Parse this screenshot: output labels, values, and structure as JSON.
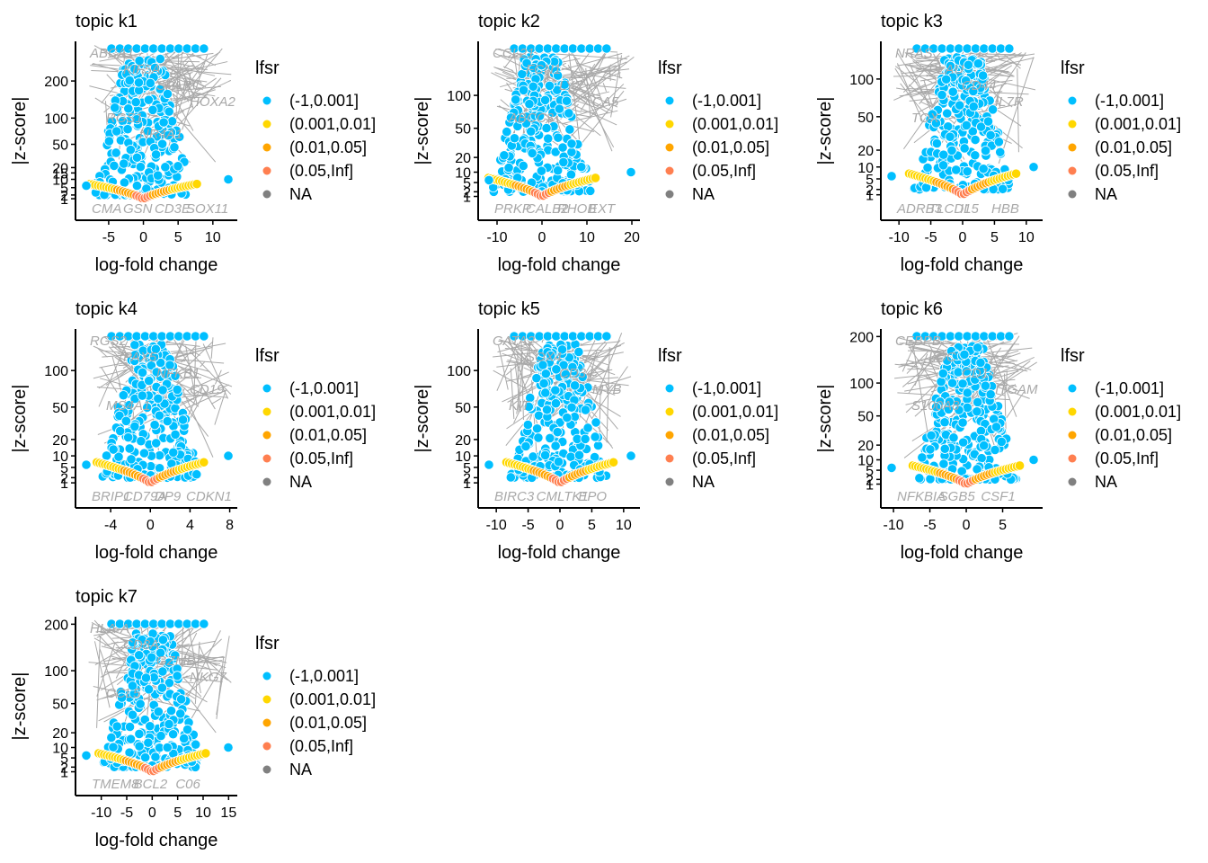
{
  "legend": {
    "title": "lfsr",
    "entries": [
      {
        "label": "(-1,0.001]",
        "color": "#00BFFF"
      },
      {
        "label": "(0.001,0.01]",
        "color": "#FFD700"
      },
      {
        "label": "(0.01,0.05]",
        "color": "#FFA500"
      },
      {
        "label": "(0.05,Inf]",
        "color": "#FF7F50"
      },
      {
        "label": "NA",
        "color": "#808080"
      }
    ]
  },
  "label_color": "#A9A9A9",
  "chart_data": [
    {
      "type": "scatter",
      "title": "topic k1",
      "xlabel": "log-fold change",
      "ylabel": "|z-score|",
      "scale": "sqrt",
      "x_ticks": [
        -5,
        0,
        5,
        10
      ],
      "xlim": [
        -9,
        13
      ],
      "ylim": [
        0,
        330
      ],
      "y_tick_labels": [
        "1",
        "2",
        "5",
        "10",
        "15",
        "20",
        "50",
        "100",
        "200"
      ],
      "y_ticks": [
        1,
        2,
        5,
        10,
        15,
        20,
        50,
        100,
        200
      ],
      "gene_labels_top": [
        "ABCA1",
        "KIF5A",
        "SPARC",
        "HOXA2",
        "RGS1",
        "NR4A1"
      ],
      "gene_labels_bottom": [
        "CMA",
        "GSN",
        "CD3E",
        "SOX11"
      ]
    },
    {
      "type": "scatter",
      "title": "topic k2",
      "xlabel": "log-fold change",
      "ylabel": "|z-score|",
      "scale": "sqrt",
      "x_ticks": [
        -10,
        0,
        10,
        20
      ],
      "xlim": [
        -13,
        21
      ],
      "ylim": [
        0,
        210
      ],
      "y_tick_labels": [
        "1",
        "2",
        "5",
        "10",
        "20",
        "50",
        "100"
      ],
      "y_ticks": [
        1,
        2,
        5,
        10,
        20,
        50,
        100
      ],
      "gene_labels_top": [
        "CCL21",
        "FCN1",
        "LYZ",
        "CA5",
        "ABCC3"
      ],
      "gene_labels_bottom": [
        "PRKP",
        "CALB2",
        "RHOB",
        "EXT"
      ]
    },
    {
      "type": "scatter",
      "title": "topic k3",
      "xlabel": "log-fold change",
      "ylabel": "|z-score|",
      "scale": "sqrt",
      "x_ticks": [
        -10,
        -5,
        0,
        5,
        10
      ],
      "xlim": [
        -12,
        12
      ],
      "ylim": [
        0,
        160
      ],
      "y_tick_labels": [
        "1",
        "2",
        "5",
        "10",
        "20",
        "50",
        "100"
      ],
      "y_ticks": [
        1,
        2,
        5,
        10,
        20,
        50,
        100
      ],
      "gene_labels_top": [
        "NRAS",
        "PLAU",
        "CD44",
        "IL7R",
        "TOX"
      ],
      "gene_labels_bottom": [
        "ADRB3",
        "TLCD1",
        "IL5",
        "HBB"
      ]
    },
    {
      "type": "scatter",
      "title": "topic k4",
      "xlabel": "log-fold change",
      "ylabel": "|z-score|",
      "scale": "sqrt",
      "x_ticks": [
        -4,
        0,
        4,
        8
      ],
      "xlim": [
        -7,
        8.4
      ],
      "ylim": [
        0,
        170
      ],
      "y_tick_labels": [
        "1",
        "2",
        "5",
        "10",
        "20",
        "50",
        "100"
      ],
      "y_ticks": [
        1,
        2,
        5,
        10,
        20,
        50,
        100
      ],
      "gene_labels_top": [
        "RGS2",
        "PAX5",
        "NFKB1",
        "CD19",
        "MS4A1"
      ],
      "gene_labels_bottom": [
        "BRIP1",
        "CD79A",
        "DP9",
        "CDKN1"
      ]
    },
    {
      "type": "scatter",
      "title": "topic k5",
      "xlabel": "log-fold change",
      "ylabel": "|z-score|",
      "scale": "sqrt",
      "x_ticks": [
        -10,
        -5,
        0,
        5,
        10
      ],
      "xlim": [
        -12,
        12
      ],
      "ylim": [
        0,
        170
      ],
      "y_tick_labels": [
        "1",
        "2",
        "5",
        "10",
        "20",
        "50",
        "100"
      ],
      "y_ticks": [
        1,
        2,
        5,
        10,
        20,
        50,
        100
      ],
      "gene_labels_top": [
        "GATA2",
        "SOX4",
        "CD34",
        "MYB",
        "KIT"
      ],
      "gene_labels_bottom": [
        "BIRC3",
        "CMLTK1",
        "EPO"
      ]
    },
    {
      "type": "scatter",
      "title": "topic k6",
      "xlabel": "log-fold change",
      "ylabel": "|z-score|",
      "scale": "sqrt",
      "x_ticks": [
        -10,
        -5,
        0,
        5
      ],
      "xlim": [
        -11,
        10
      ],
      "ylim": [
        0,
        210
      ],
      "y_tick_labels": [
        "1",
        "2",
        "5",
        "10",
        "20",
        "50",
        "100",
        "200"
      ],
      "y_ticks": [
        1,
        2,
        5,
        10,
        20,
        50,
        100,
        200
      ],
      "gene_labels_top": [
        "CEBPB",
        "LOC",
        "CD14",
        "ITGAM",
        "S100A8"
      ],
      "gene_labels_bottom": [
        "NFKBIA",
        "SGB5",
        "CSF1"
      ]
    },
    {
      "type": "scatter",
      "title": "topic k7",
      "xlabel": "log-fold change",
      "ylabel": "|z-score|",
      "scale": "sqrt",
      "x_ticks": [
        -10,
        -5,
        0,
        5,
        10,
        15
      ],
      "xlim": [
        -14,
        16
      ],
      "ylim": [
        0,
        210
      ],
      "y_tick_labels": [
        "1",
        "2",
        "5",
        "10",
        "20",
        "50",
        "100",
        "200"
      ],
      "y_ticks": [
        1,
        2,
        5,
        10,
        20,
        50,
        100,
        200
      ],
      "gene_labels_top": [
        "HLA-A",
        "CD8A",
        "GZMB",
        "NKG7",
        "CCL5"
      ],
      "gene_labels_bottom": [
        "TMEM8",
        "BCL2",
        "C06"
      ]
    }
  ]
}
